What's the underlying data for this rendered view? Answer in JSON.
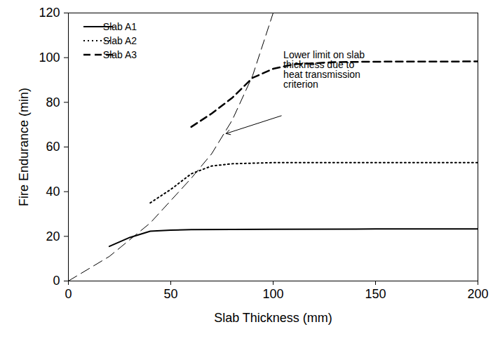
{
  "chart_data": {
    "type": "line",
    "x_label": "Slab Thickness (mm)",
    "y_label": "Fire Endurance (min)",
    "xlim": [
      0,
      200
    ],
    "ylim": [
      0,
      120
    ],
    "xticks": [
      0,
      50,
      100,
      150,
      200
    ],
    "yticks": [
      0,
      20,
      40,
      60,
      80,
      100,
      120
    ],
    "legend": "top-left",
    "series": [
      {
        "name": "Slab A1",
        "color": "#000000",
        "line_style": "solid",
        "x": [
          20,
          30,
          40,
          50,
          60,
          100,
          150,
          200
        ],
        "values": [
          15.5,
          19.5,
          22.3,
          22.8,
          23,
          23.2,
          23.3,
          23.3
        ]
      },
      {
        "name": "Slab A2",
        "color": "#000000",
        "line_style": "dotted",
        "x": [
          40,
          50,
          60,
          70,
          80,
          100,
          150,
          200
        ],
        "values": [
          35,
          41,
          48,
          51.5,
          52.5,
          53,
          53,
          53
        ]
      },
      {
        "name": "Slab A3",
        "color": "#000000",
        "line_style": "dashed",
        "x": [
          60,
          70,
          80,
          90,
          100,
          110,
          130,
          150,
          200
        ],
        "values": [
          69,
          75,
          82,
          91,
          95,
          97,
          98,
          98.2,
          98.3
        ]
      }
    ],
    "reference_line": {
      "color": "#000000",
      "line_style": "dashed",
      "x": [
        0,
        20,
        40,
        60,
        70,
        80,
        90,
        100
      ],
      "values": [
        0,
        11,
        26,
        46,
        57,
        72,
        92,
        120
      ]
    },
    "annotations": [
      {
        "text": "Lower limit on slab\nthickness due to\nheat transmission\ncriterion",
        "x": 105,
        "y": 103,
        "arrow_from": [
          104,
          74
        ],
        "arrow_to": [
          77,
          66
        ]
      }
    ]
  }
}
